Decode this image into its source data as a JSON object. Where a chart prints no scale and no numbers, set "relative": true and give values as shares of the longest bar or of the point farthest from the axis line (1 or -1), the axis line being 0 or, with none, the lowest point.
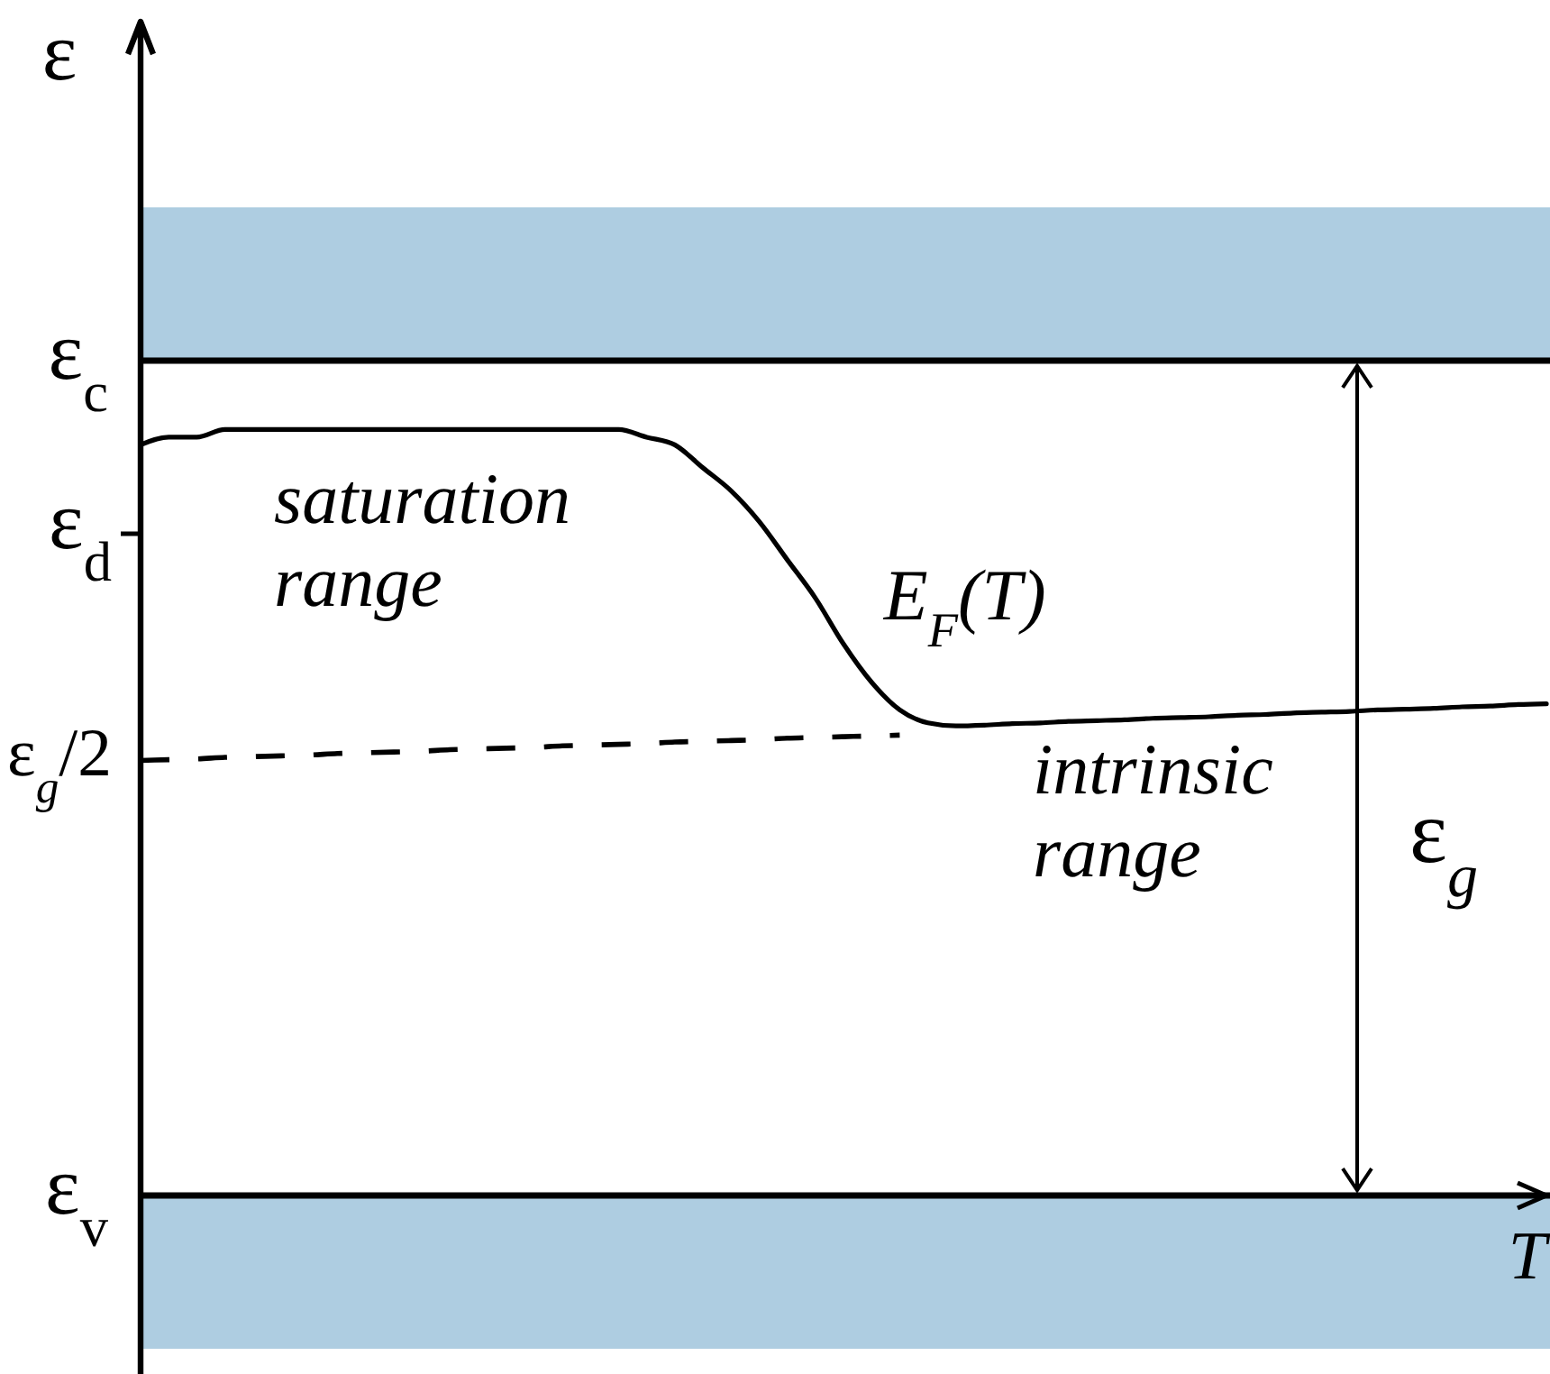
{
  "chart_data": {
    "type": "line",
    "relative": true,
    "xlabel": "T",
    "ylabel": "ε",
    "marker": "none",
    "categories": [
      null,
      null,
      null,
      null,
      null,
      null,
      null,
      null,
      null,
      null,
      null,
      null,
      null,
      null,
      null,
      null,
      null,
      null,
      null,
      null,
      null,
      null,
      null,
      null,
      null,
      null,
      null,
      null,
      null,
      null,
      null,
      null,
      null,
      null,
      null,
      null,
      null,
      null,
      null,
      null,
      null,
      null,
      null,
      null,
      null,
      null,
      null,
      null,
      null,
      null,
      null
    ],
    "series": [
      {
        "name": "E$_{F}$(T)",
        "color": "#000000",
        "line_style": "solid",
        "values": [
          0.98,
          0.99,
          0.99,
          1,
          1,
          1,
          1,
          1,
          1,
          1,
          1,
          1,
          1,
          1,
          1,
          1,
          1,
          1,
          0.99,
          0.98,
          0.95,
          0.92,
          0.88,
          0.83,
          0.78,
          0.72,
          0.67,
          0.634,
          0.617,
          0.613,
          0.614,
          0.616,
          0.617,
          0.619,
          0.62,
          0.621,
          0.623,
          0.624,
          0.625,
          0.627,
          0.628,
          0.63,
          0.631,
          0.632,
          0.634,
          0.635,
          0.636,
          0.638,
          0.639,
          0.641,
          0.642
        ]
      },
      {
        "color": "#000000",
        "line_style": "dashed",
        "values": [
          0.568,
          0.569,
          0.57,
          0.572,
          0.573,
          0.574,
          0.575,
          0.577,
          0.578,
          0.579,
          0.58,
          0.582,
          0.583,
          0.584,
          0.585,
          0.587,
          0.588,
          0.589,
          0.59,
          0.592,
          0.593,
          0.594,
          0.595,
          0.597,
          0.598,
          0.599,
          0.6,
          0.601,
          null,
          null,
          null,
          null,
          null,
          null,
          null,
          null,
          null,
          null,
          null,
          null,
          null,
          null,
          null,
          null,
          null,
          null,
          null,
          null,
          null,
          null,
          null
        ]
      }
    ],
    "ref_lines": [
      {
        "axis": "y",
        "value": 1.09,
        "label": "ε$_{c}$"
      },
      {
        "axis": "y",
        "value": 0,
        "label": "ε$_{v}$"
      }
    ],
    "bands": [
      {
        "axis": "y",
        "from": 1.09,
        "to": 1.29,
        "color": "#aecde1"
      },
      {
        "axis": "y",
        "from": -0.2,
        "to": 0,
        "color": "#aecde1"
      }
    ],
    "annotations": [
      "saturation range",
      "intrinsic range",
      "ε$_{g}$",
      "ε$_{d}$",
      "ε$_{g}$/2"
    ]
  }
}
